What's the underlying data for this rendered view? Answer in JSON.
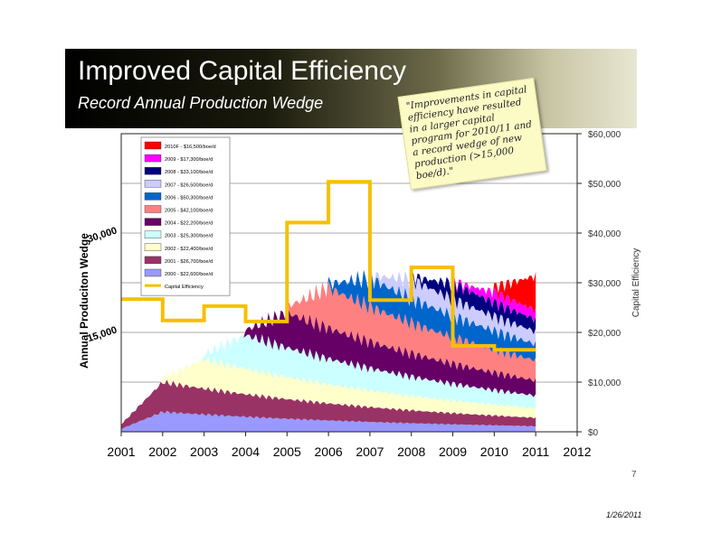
{
  "slide": {
    "title": "Improved Capital Efficiency",
    "subtitle": "Record Annual Production Wedge",
    "note": "\"Improvements in capital efficiency have resulted in a larger capital program for 2010/11 and a record wedge of new production (>15,000 boe/d).\"",
    "page_number": "7",
    "date": "1/26/2011"
  },
  "colors": {
    "banner_start": "#000000",
    "banner_end": "#e8e6d2",
    "capital_efficiency_line": "#f5c000",
    "note_background": "#fcfac5"
  },
  "chart_data": {
    "type": "area",
    "ylabel_left": "Annual Produciton Wedge",
    "ylabel_right": "Capital Efficiency",
    "left_ticks": [
      "15,000",
      "30,000"
    ],
    "left_tick_values": [
      15000,
      30000
    ],
    "right_ticks": [
      "$0",
      "$10,000",
      "$20,000",
      "$30,000",
      "$40,000",
      "$50,000",
      "$60,000"
    ],
    "right_ylim": [
      0,
      60000
    ],
    "x_ticks": [
      "2001",
      "2002",
      "2003",
      "2004",
      "2005",
      "2006",
      "2007",
      "2008",
      "2009",
      "2010",
      "2011",
      "2012"
    ],
    "xlim": [
      2001,
      2012
    ],
    "legend_position": "top-left",
    "grid": "horizontal",
    "wedges": [
      {
        "name": "2000 - $22,600/boe/d",
        "start": 2001.0,
        "peak": 3000,
        "color": "#9999ff"
      },
      {
        "name": "2001 - $26,700/boe/d",
        "start": 2001.0,
        "peak": 4500,
        "color": "#993366"
      },
      {
        "name": "2002 - $22,400/boe/d",
        "start": 2002.0,
        "peak": 4400,
        "color": "#ffffcc"
      },
      {
        "name": "2003 - $25,300/boe/d",
        "start": 2003.0,
        "peak": 5100,
        "color": "#ccffff"
      },
      {
        "name": "2004 - $22,200/boe/d",
        "start": 2004.0,
        "peak": 5300,
        "color": "#660066"
      },
      {
        "name": "2005 - $42,100/boe/d",
        "start": 2005.0,
        "peak": 6100,
        "color": "#ff8080"
      },
      {
        "name": "2006 - $50,300/boe/d",
        "start": 2006.0,
        "peak": 4300,
        "color": "#0066cc"
      },
      {
        "name": "2007 - $26,500/boe/d",
        "start": 2007.0,
        "peak": 2900,
        "color": "#ccccff"
      },
      {
        "name": "2008 - $33,100/boe/d",
        "start": 2008.0,
        "peak": 2400,
        "color": "#000080"
      },
      {
        "name": "2009 - $17,300/boe/d",
        "start": 2009.0,
        "peak": 1600,
        "color": "#ff00ff"
      },
      {
        "name": "2010F - $16,500/boe/d",
        "start": 2010.0,
        "peak": 5200,
        "color": "#ff0000"
      }
    ],
    "capital_efficiency": {
      "name": "Capital Efficiency",
      "x": [
        2001.0,
        2002.0,
        2002.0,
        2003.0,
        2003.0,
        2004.0,
        2004.0,
        2005.0,
        2005.0,
        2006.0,
        2006.0,
        2007.0,
        2007.0,
        2008.0,
        2008.0,
        2009.0,
        2009.0,
        2010.0,
        2010.0,
        2011.0
      ],
      "y": [
        26700,
        26700,
        22400,
        22400,
        25300,
        25300,
        22200,
        22200,
        42100,
        42100,
        50300,
        50300,
        26500,
        26500,
        33100,
        33100,
        17300,
        17300,
        16500,
        16500
      ]
    }
  }
}
